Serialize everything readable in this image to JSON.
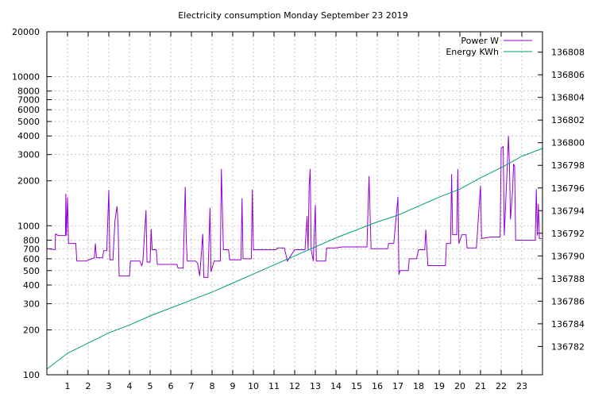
{
  "chart_data": {
    "type": "line",
    "title": "Electricity consumption Monday September 23 2019",
    "grid": true,
    "legend_position": "top-right",
    "x_axis": {
      "range": [
        0,
        24
      ],
      "ticks": [
        1,
        2,
        3,
        4,
        5,
        6,
        7,
        8,
        9,
        10,
        11,
        12,
        13,
        14,
        15,
        16,
        17,
        18,
        19,
        20,
        21,
        22,
        23
      ]
    },
    "y_left": {
      "scale": "log",
      "range": [
        100,
        20000
      ],
      "ticks": [
        100,
        200,
        300,
        400,
        500,
        600,
        700,
        800,
        1000,
        2000,
        3000,
        4000,
        5000,
        6000,
        7000,
        8000,
        10000,
        20000
      ]
    },
    "y_right": {
      "scale": "linear",
      "range": [
        136779.5,
        136809.8
      ],
      "ticks": [
        136782,
        136784,
        136786,
        136788,
        136790,
        136792,
        136794,
        136796,
        136798,
        136800,
        136802,
        136804,
        136806,
        136808
      ]
    },
    "series": [
      {
        "name": "Power W",
        "axis": "left",
        "color": "#9400d3",
        "points": [
          [
            0.0,
            700
          ],
          [
            0.4,
            690
          ],
          [
            0.42,
            880
          ],
          [
            0.55,
            860
          ],
          [
            0.9,
            860
          ],
          [
            0.92,
            1640
          ],
          [
            0.95,
            860
          ],
          [
            1.0,
            1550
          ],
          [
            1.05,
            760
          ],
          [
            1.2,
            760
          ],
          [
            1.4,
            760
          ],
          [
            1.45,
            580
          ],
          [
            1.9,
            580
          ],
          [
            2.3,
            610
          ],
          [
            2.35,
            760
          ],
          [
            2.4,
            610
          ],
          [
            2.7,
            610
          ],
          [
            2.75,
            680
          ],
          [
            2.9,
            680
          ],
          [
            3.0,
            1740
          ],
          [
            3.05,
            590
          ],
          [
            3.2,
            590
          ],
          [
            3.3,
            1090
          ],
          [
            3.4,
            1350
          ],
          [
            3.45,
            1000
          ],
          [
            3.5,
            460
          ],
          [
            4.0,
            460
          ],
          [
            4.05,
            580
          ],
          [
            4.5,
            580
          ],
          [
            4.6,
            540
          ],
          [
            4.65,
            580
          ],
          [
            4.8,
            1270
          ],
          [
            4.85,
            570
          ],
          [
            5.0,
            570
          ],
          [
            5.05,
            950
          ],
          [
            5.1,
            690
          ],
          [
            5.3,
            690
          ],
          [
            5.35,
            550
          ],
          [
            5.9,
            550
          ],
          [
            6.3,
            550
          ],
          [
            6.35,
            520
          ],
          [
            6.6,
            520
          ],
          [
            6.7,
            1820
          ],
          [
            6.75,
            800
          ],
          [
            6.8,
            580
          ],
          [
            7.2,
            580
          ],
          [
            7.3,
            560
          ],
          [
            7.4,
            460
          ],
          [
            7.55,
            880
          ],
          [
            7.6,
            450
          ],
          [
            7.8,
            450
          ],
          [
            7.9,
            1320
          ],
          [
            7.95,
            490
          ],
          [
            8.1,
            580
          ],
          [
            8.4,
            580
          ],
          [
            8.45,
            2400
          ],
          [
            8.55,
            690
          ],
          [
            8.8,
            690
          ],
          [
            8.85,
            590
          ],
          [
            9.4,
            590
          ],
          [
            9.45,
            1530
          ],
          [
            9.5,
            600
          ],
          [
            9.9,
            600
          ],
          [
            9.95,
            1750
          ],
          [
            10.0,
            690
          ],
          [
            10.5,
            690
          ],
          [
            11.1,
            690
          ],
          [
            11.15,
            710
          ],
          [
            11.5,
            710
          ],
          [
            11.65,
            580
          ],
          [
            12.0,
            690
          ],
          [
            12.5,
            690
          ],
          [
            12.6,
            1160
          ],
          [
            12.65,
            690
          ],
          [
            12.7,
            1830
          ],
          [
            12.75,
            2400
          ],
          [
            12.8,
            690
          ],
          [
            12.9,
            580
          ],
          [
            13.0,
            1380
          ],
          [
            13.05,
            580
          ],
          [
            13.4,
            580
          ],
          [
            13.5,
            580
          ],
          [
            13.55,
            710
          ],
          [
            14.0,
            710
          ],
          [
            14.3,
            720
          ],
          [
            15.0,
            720
          ],
          [
            15.5,
            720
          ],
          [
            15.6,
            2150
          ],
          [
            15.7,
            700
          ],
          [
            16.0,
            700
          ],
          [
            16.5,
            700
          ],
          [
            16.55,
            760
          ],
          [
            16.8,
            760
          ],
          [
            17.0,
            1560
          ],
          [
            17.05,
            470
          ],
          [
            17.1,
            500
          ],
          [
            17.3,
            500
          ],
          [
            17.5,
            500
          ],
          [
            17.55,
            600
          ],
          [
            17.9,
            600
          ],
          [
            18.0,
            690
          ],
          [
            18.3,
            690
          ],
          [
            18.35,
            940
          ],
          [
            18.45,
            540
          ],
          [
            18.9,
            540
          ],
          [
            19.3,
            540
          ],
          [
            19.35,
            760
          ],
          [
            19.55,
            760
          ],
          [
            19.6,
            2220
          ],
          [
            19.65,
            870
          ],
          [
            19.85,
            870
          ],
          [
            19.9,
            2400
          ],
          [
            19.95,
            760
          ],
          [
            20.1,
            870
          ],
          [
            20.3,
            870
          ],
          [
            20.35,
            710
          ],
          [
            20.8,
            710
          ],
          [
            21.0,
            1860
          ],
          [
            21.05,
            820
          ],
          [
            21.5,
            840
          ],
          [
            21.95,
            840
          ],
          [
            22.0,
            3300
          ],
          [
            22.1,
            3400
          ],
          [
            22.15,
            860
          ],
          [
            22.3,
            2600
          ],
          [
            22.35,
            4000
          ],
          [
            22.4,
            2600
          ],
          [
            22.45,
            1100
          ],
          [
            22.55,
            1700
          ],
          [
            22.6,
            2600
          ],
          [
            22.65,
            2500
          ],
          [
            22.7,
            800
          ],
          [
            22.9,
            800
          ],
          [
            23.4,
            800
          ],
          [
            23.65,
            800
          ],
          [
            23.7,
            1760
          ],
          [
            23.75,
            860
          ],
          [
            23.8,
            1400
          ],
          [
            23.85,
            820
          ],
          [
            23.95,
            820
          ]
        ]
      },
      {
        "name": "Energy KWh",
        "axis": "right",
        "color": "#009e73",
        "points": [
          [
            0.0,
            136780.0
          ],
          [
            1.0,
            136781.4
          ],
          [
            2.0,
            136782.3
          ],
          [
            3.0,
            136783.2
          ],
          [
            4.0,
            136783.9
          ],
          [
            5.0,
            136784.7
          ],
          [
            6.0,
            136785.4
          ],
          [
            7.0,
            136786.1
          ],
          [
            8.0,
            136786.8
          ],
          [
            9.0,
            136787.6
          ],
          [
            10.0,
            136788.4
          ],
          [
            11.0,
            136789.2
          ],
          [
            12.0,
            136790.0
          ],
          [
            13.0,
            136790.8
          ],
          [
            14.0,
            136791.6
          ],
          [
            15.0,
            136792.3
          ],
          [
            16.0,
            136793.0
          ],
          [
            17.0,
            136793.6
          ],
          [
            18.0,
            136794.4
          ],
          [
            19.0,
            136795.2
          ],
          [
            20.0,
            136795.9
          ],
          [
            21.0,
            136796.9
          ],
          [
            22.0,
            136797.8
          ],
          [
            23.0,
            136798.8
          ],
          [
            24.0,
            136799.5
          ]
        ]
      }
    ]
  }
}
